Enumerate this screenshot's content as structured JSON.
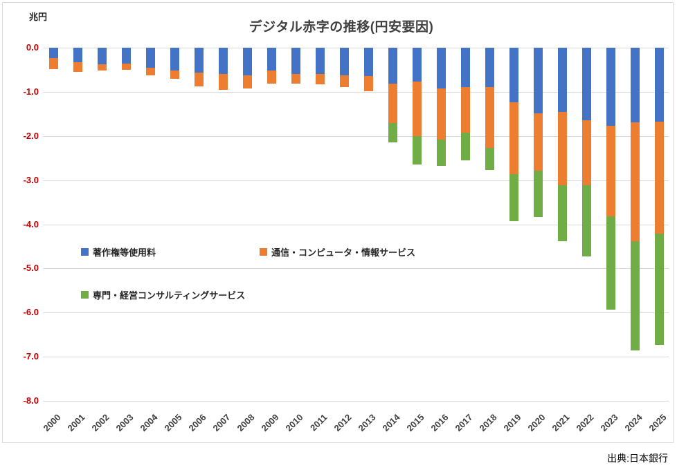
{
  "page": {
    "source_credit": "出典:日本銀行"
  },
  "chart_data": {
    "type": "bar",
    "stacked": true,
    "direction": "negative-down",
    "title": "デジタル赤字の推移(円安要因)",
    "unit_label": "兆円",
    "ylabel": "兆円",
    "ylim": [
      0,
      -8
    ],
    "grid": true,
    "y_ticks": [
      "0.0",
      "-1.0",
      "-2.0",
      "-3.0",
      "-4.0",
      "-5.0",
      "-6.0",
      "-7.0",
      "-8.0"
    ],
    "categories": [
      "2000",
      "2001",
      "2002",
      "2003",
      "2004",
      "2005",
      "2006",
      "2007",
      "2008",
      "2009",
      "2010",
      "2011",
      "2012",
      "2013",
      "2014",
      "2015",
      "2016",
      "2017",
      "2018",
      "2019",
      "2020",
      "2021",
      "2022",
      "2023",
      "2024",
      "2025"
    ],
    "legend_position": "inside-middle-left",
    "axis_tick_color": "#C00000",
    "gridline_color": "#D9D9D9",
    "series": [
      {
        "name": "著作権等使用料",
        "color": "#4472C4",
        "values": [
          -0.24,
          -0.33,
          -0.37,
          -0.36,
          -0.46,
          -0.51,
          -0.56,
          -0.6,
          -0.62,
          -0.52,
          -0.59,
          -0.59,
          -0.62,
          -0.64,
          -0.82,
          -0.77,
          -0.93,
          -0.89,
          -0.9,
          -1.23,
          -1.48,
          -1.45,
          -1.65,
          -1.77,
          -1.69,
          -1.67
        ]
      },
      {
        "name": "通信・コンピュータ・情報サービス",
        "color": "#ED7D31",
        "values": [
          -0.24,
          -0.22,
          -0.15,
          -0.14,
          -0.17,
          -0.19,
          -0.31,
          -0.35,
          -0.31,
          -0.3,
          -0.23,
          -0.24,
          -0.27,
          -0.34,
          -0.89,
          -1.23,
          -1.15,
          -1.03,
          -1.37,
          -1.63,
          -1.31,
          -1.66,
          -1.47,
          -2.05,
          -2.7,
          -2.54
        ]
      },
      {
        "name": "専門・経営コンサルティングサービス",
        "color": "#70AD47",
        "values": [
          0,
          0,
          0,
          0,
          0,
          0,
          0,
          0,
          0,
          0,
          0,
          0,
          0,
          0,
          -0.44,
          -0.65,
          -0.6,
          -0.63,
          -0.5,
          -1.07,
          -1.05,
          -1.27,
          -1.61,
          -2.12,
          -2.47,
          -2.53
        ]
      }
    ],
    "totals": [
      -0.48,
      -0.55,
      -0.52,
      -0.5,
      -0.63,
      -0.7,
      -0.87,
      -0.95,
      -0.93,
      -0.82,
      -0.82,
      -0.83,
      -0.89,
      -0.98,
      -2.15,
      -2.65,
      -2.68,
      -2.55,
      -2.77,
      -3.93,
      -3.84,
      -4.38,
      -4.73,
      -5.94,
      -6.86,
      -6.74
    ]
  }
}
